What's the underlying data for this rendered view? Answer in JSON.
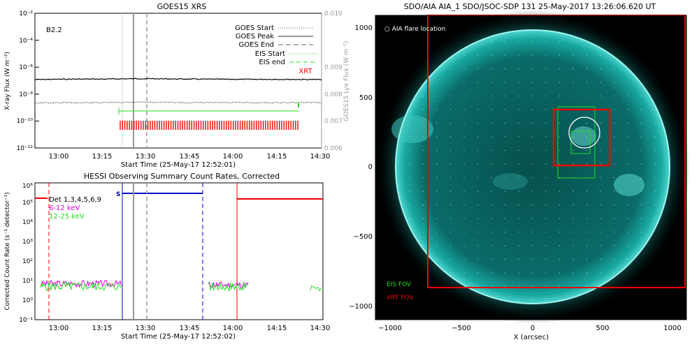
{
  "chart_data": [
    {
      "type": "line",
      "title": "GOES15 XRS",
      "class_label": "B2.2",
      "xlabel": "Start Time (25-May-17 12:52:01)",
      "ylabel": "X-ray Flux (W m⁻²)",
      "ylabel_right": "GOES15 Lyx Flux (W m⁻²)",
      "x_ticks": [
        "13:00",
        "13:15",
        "13:30",
        "13:45",
        "14:00",
        "14:15",
        "14:30"
      ],
      "y_ticks": [
        "10⁻¹²",
        "10⁻¹⁰",
        "10⁻⁸",
        "10⁻⁶",
        "10⁻⁴",
        "10⁻²"
      ],
      "y_ticks_right": [
        "0.006",
        "0.007",
        "0.008",
        "0.009",
        "0.010"
      ],
      "legend": [
        {
          "label": "GOES Start",
          "style": "dotted",
          "color": "#555555"
        },
        {
          "label": "GOES Peak",
          "style": "solid",
          "color": "#999999"
        },
        {
          "label": "GOES End",
          "style": "dashed",
          "color": "#999999"
        },
        {
          "label": "EIS Start",
          "style": "dotted",
          "color": "#22dd22"
        },
        {
          "label": "EIS end",
          "style": "dashed",
          "color": "#22dd22"
        },
        {
          "label": "XRT",
          "style": "text",
          "color": "#ee0000"
        }
      ],
      "series": [
        {
          "name": "1-8 Å",
          "values": [
            1.2e-07,
            1.3e-07,
            1.3e-07,
            1.4e-07,
            1.3e-07,
            1.25e-07,
            1.25e-07,
            1.2e-07
          ]
        },
        {
          "name": "0.5-4 Å",
          "values": [
            2.2e-09,
            2.3e-09,
            2.3e-09,
            2.6e-09,
            2.3e-09,
            2.3e-09,
            2.3e-09,
            2.4e-09
          ]
        }
      ],
      "series_times": [
        "12:52",
        "13:05",
        "13:15",
        "13:27",
        "13:45",
        "14:00",
        "14:15",
        "14:30"
      ],
      "colors": {
        "goes": "#000000",
        "eis": "#22dd22",
        "xrt": "#ee0000",
        "marker": "#999999"
      }
    },
    {
      "type": "line",
      "title": "HESSI Observing Summary Count Rates, Corrected",
      "xlabel": "Start Time (25-May-17 12:52:02)",
      "ylabel": "Corrected Count Rate (s⁻¹ detector⁻¹)",
      "x_ticks": [
        "13:00",
        "13:15",
        "13:30",
        "13:45",
        "14:00",
        "14:15",
        "14:30"
      ],
      "y_ticks": [
        "10⁻¹",
        "10⁰",
        "10¹",
        "10²",
        "10³",
        "10⁴",
        "10⁵",
        "10⁶"
      ],
      "legend_title": "Det 1,3,4,5,6,9",
      "legend": [
        {
          "label": "6-12 keV",
          "color": "#dd00dd"
        },
        {
          "label": "12-25 keV",
          "color": "#22dd22"
        }
      ],
      "saa_label": "S",
      "colors": {
        "night": "#ee0000",
        "saa": "#0000cc"
      }
    },
    {
      "type": "heatmap",
      "title": "SDO/AIA AIA_1 SDO/JSOC-SDP 131 25-May-2017 13:26:06.620 UT",
      "xlabel": "X (arcsec)",
      "ylabel": "Y (arcsec)",
      "x_ticks": [
        "−1000",
        "−500",
        "0",
        "500",
        "1000"
      ],
      "y_ticks": [
        "−1000",
        "−500",
        "0",
        "500",
        "1000"
      ],
      "flare_label": "○ AIA flare location",
      "eis_label": "EIS FOV",
      "xrt_label": "XRT FOV",
      "flare_location": [
        440,
        270
      ],
      "colors": {
        "sun": "#0b8a86",
        "eis": "#22dd22",
        "xrt": "#ee0000"
      }
    }
  ]
}
